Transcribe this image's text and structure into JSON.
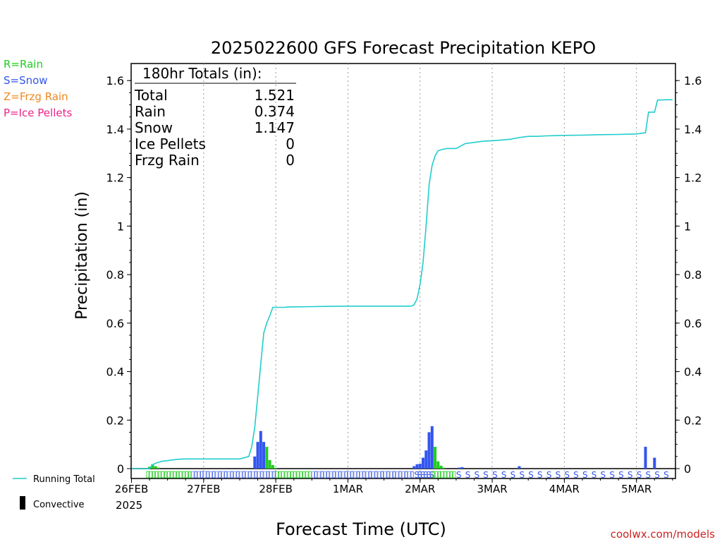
{
  "chart_data": {
    "type": "bar",
    "title": "2025022600 GFS Forecast Precipitation KEPO",
    "xlabel": "Forecast Time (UTC)",
    "ylabel": "Precipitation (in)",
    "ylim": [
      0,
      1.65
    ],
    "y_ticks": [
      "0",
      "0.2",
      "0.4",
      "0.6",
      "0.8",
      "1",
      "1.2",
      "1.4",
      "1.6"
    ],
    "x_tick_labels": [
      "26FEB",
      "27FEB",
      "28FEB",
      "1MAR",
      "2MAR",
      "3MAR",
      "4MAR",
      "5MAR"
    ],
    "x_year_label": "2025",
    "forecast_hours_max": 180,
    "precip_type_legend": [
      {
        "code": "R",
        "label": "R=Rain",
        "color": "#22cc22"
      },
      {
        "code": "S",
        "label": "S=Snow",
        "color": "#3355ee"
      },
      {
        "code": "Z",
        "label": "Z=Frzg Rain",
        "color": "#ee8822"
      },
      {
        "code": "P",
        "label": "P=Ice Pellets",
        "color": "#ee2288"
      }
    ],
    "totals_box": {
      "header": "180hr Totals (in):",
      "rows": [
        {
          "label": "Total",
          "value": "1.521"
        },
        {
          "label": "Rain",
          "value": "0.374"
        },
        {
          "label": "Snow",
          "value": "1.147"
        },
        {
          "label": "Ice Pellets",
          "value": "0"
        },
        {
          "label": "Frzg Rain",
          "value": "0"
        }
      ]
    },
    "running_total_label": "Running Total",
    "convective_label": "Convective",
    "running_total": {
      "hours": [
        0,
        6,
        7,
        8,
        9,
        10,
        12,
        15,
        18,
        21,
        24,
        30,
        36,
        39,
        40,
        41,
        42,
        43,
        44,
        45,
        46,
        47,
        48,
        49,
        50,
        51,
        52,
        54,
        60,
        66,
        72,
        78,
        84,
        90,
        93,
        94,
        95,
        96,
        97,
        98,
        99,
        100,
        101,
        102,
        103,
        104,
        105,
        106,
        108,
        111,
        114,
        117,
        120,
        123,
        126,
        129,
        132,
        135,
        138,
        141,
        144,
        150,
        156,
        162,
        168,
        171,
        172,
        174,
        175,
        176,
        178,
        180
      ],
      "values": [
        0,
        0,
        0.015,
        0.022,
        0.026,
        0.03,
        0.033,
        0.038,
        0.04,
        0.04,
        0.04,
        0.04,
        0.04,
        0.05,
        0.09,
        0.17,
        0.3,
        0.43,
        0.56,
        0.6,
        0.63,
        0.665,
        0.665,
        0.665,
        0.665,
        0.665,
        0.666,
        0.667,
        0.668,
        0.669,
        0.67,
        0.67,
        0.67,
        0.67,
        0.67,
        0.675,
        0.7,
        0.76,
        0.85,
        1.0,
        1.17,
        1.25,
        1.29,
        1.31,
        1.315,
        1.318,
        1.32,
        1.32,
        1.32,
        1.34,
        1.345,
        1.35,
        1.352,
        1.355,
        1.358,
        1.365,
        1.37,
        1.37,
        1.372,
        1.373,
        1.374,
        1.375,
        1.377,
        1.378,
        1.38,
        1.385,
        1.47,
        1.47,
        1.52,
        1.52,
        1.521,
        1.521
      ]
    },
    "bars": [
      {
        "hour": 6,
        "value": 0.008,
        "type": "R"
      },
      {
        "hour": 7,
        "value": 0.018,
        "type": "R"
      },
      {
        "hour": 8,
        "value": 0.01,
        "type": "R"
      },
      {
        "hour": 9,
        "value": 0.004,
        "type": "R"
      },
      {
        "hour": 41,
        "value": 0.05,
        "type": "S"
      },
      {
        "hour": 42,
        "value": 0.11,
        "type": "S"
      },
      {
        "hour": 43,
        "value": 0.155,
        "type": "S"
      },
      {
        "hour": 44,
        "value": 0.11,
        "type": "S"
      },
      {
        "hour": 45,
        "value": 0.09,
        "type": "R"
      },
      {
        "hour": 46,
        "value": 0.035,
        "type": "R"
      },
      {
        "hour": 47,
        "value": 0.015,
        "type": "R"
      },
      {
        "hour": 48,
        "value": 0.003,
        "type": "R"
      },
      {
        "hour": 94,
        "value": 0.01,
        "type": "S"
      },
      {
        "hour": 95,
        "value": 0.018,
        "type": "S"
      },
      {
        "hour": 96,
        "value": 0.02,
        "type": "S"
      },
      {
        "hour": 97,
        "value": 0.045,
        "type": "S"
      },
      {
        "hour": 98,
        "value": 0.075,
        "type": "S"
      },
      {
        "hour": 99,
        "value": 0.15,
        "type": "S"
      },
      {
        "hour": 100,
        "value": 0.175,
        "type": "S"
      },
      {
        "hour": 101,
        "value": 0.09,
        "type": "R"
      },
      {
        "hour": 102,
        "value": 0.03,
        "type": "R"
      },
      {
        "hour": 103,
        "value": 0.012,
        "type": "R"
      },
      {
        "hour": 104,
        "value": 0.004,
        "type": "R"
      },
      {
        "hour": 109,
        "value": 0.004,
        "type": "S"
      },
      {
        "hour": 110,
        "value": 0.006,
        "type": "S"
      },
      {
        "hour": 129,
        "value": 0.01,
        "type": "S"
      },
      {
        "hour": 171,
        "value": 0.09,
        "type": "S"
      },
      {
        "hour": 174,
        "value": 0.045,
        "type": "S"
      }
    ],
    "type_strip": {
      "rain_hours": [
        5,
        20
      ],
      "mixed_hours": [
        20,
        48
      ],
      "rain_hours2": [
        48,
        60
      ],
      "mixed_hours2": [
        60,
        94
      ],
      "snow_hours": [
        94,
        100
      ],
      "rain_hours3": [
        100,
        108
      ],
      "snow_hours2": [
        108,
        180
      ]
    }
  },
  "footer": {
    "credit": "coolwx.com/models"
  }
}
